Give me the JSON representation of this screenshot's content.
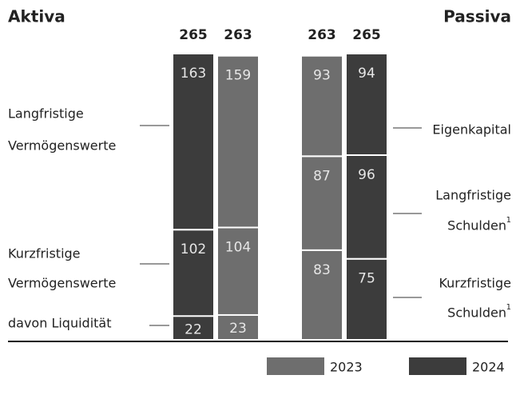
{
  "chart_data": {
    "type": "stacked_bar",
    "ylim": [
      0,
      265
    ],
    "series": [
      {
        "name": "2023",
        "color": "#6e6e6e"
      },
      {
        "name": "2024",
        "color": "#3c3c3c"
      }
    ],
    "panels": [
      {
        "title": "Aktiva",
        "segments": [
          {
            "label": [
              "Kurzfristige",
              "Vermögenswerte"
            ]
          },
          {
            "label": [
              "Langfristige",
              "Vermögenswerte"
            ]
          }
        ],
        "detail": {
          "label": "davon Liquidität"
        },
        "bars": [
          {
            "series": 1,
            "total": 265,
            "values": [
              102,
              163
            ],
            "detail": 22
          },
          {
            "series": 0,
            "total": 263,
            "values": [
              104,
              159
            ],
            "detail": 23
          }
        ]
      },
      {
        "title": "Passiva",
        "segments": [
          {
            "label": [
              "Kurzfristige",
              "Schulden"
            ],
            "note": "1"
          },
          {
            "label": [
              "Langfristige",
              "Schulden"
            ],
            "note": "1"
          },
          {
            "label": [
              "Eigenkapital"
            ]
          }
        ],
        "bars": [
          {
            "series": 0,
            "total": 263,
            "values": [
              83,
              87,
              93
            ]
          },
          {
            "series": 1,
            "total": 265,
            "values": [
              75,
              96,
              94
            ]
          }
        ]
      }
    ]
  }
}
